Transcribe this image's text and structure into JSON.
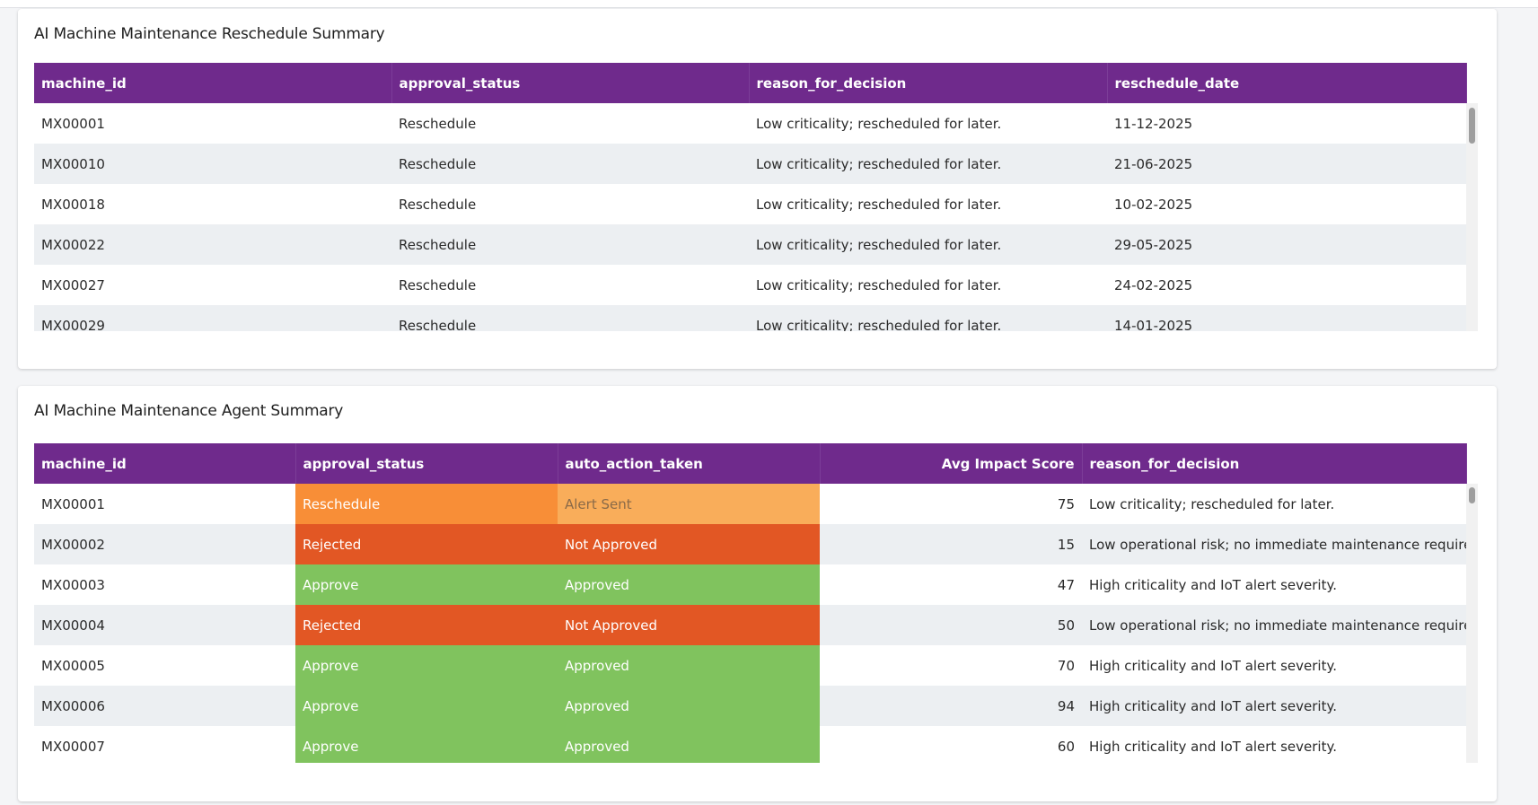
{
  "reschedule_summary": {
    "title": "AI Machine Maintenance Reschedule Summary",
    "columns": [
      "machine_id",
      "approval_status",
      "reason_for_decision",
      "reschedule_date"
    ],
    "rows": [
      [
        "MX00001",
        "Reschedule",
        "Low criticality; rescheduled for later.",
        "11-12-2025"
      ],
      [
        "MX00010",
        "Reschedule",
        "Low criticality; rescheduled for later.",
        "21-06-2025"
      ],
      [
        "MX00018",
        "Reschedule",
        "Low criticality; rescheduled for later.",
        "10-02-2025"
      ],
      [
        "MX00022",
        "Reschedule",
        "Low criticality; rescheduled for later.",
        "29-05-2025"
      ],
      [
        "MX00027",
        "Reschedule",
        "Low criticality; rescheduled for later.",
        "24-02-2025"
      ],
      [
        "MX00029",
        "Reschedule",
        "Low criticality; rescheduled for later.",
        "14-01-2025"
      ]
    ]
  },
  "agent_summary": {
    "title": "AI Machine Maintenance Agent Summary",
    "columns": [
      "machine_id",
      "approval_status",
      "auto_action_taken",
      "Avg Impact Score",
      "reason_for_decision"
    ],
    "rows": [
      {
        "machine_id": "MX00001",
        "approval_status": "Reschedule",
        "auto_action_taken": "Alert Sent",
        "avg_impact_score": "75",
        "reason_for_decision": "Low criticality; rescheduled for later."
      },
      {
        "machine_id": "MX00002",
        "approval_status": "Rejected",
        "auto_action_taken": "Not Approved",
        "avg_impact_score": "15",
        "reason_for_decision": "Low operational risk; no immediate maintenance required."
      },
      {
        "machine_id": "MX00003",
        "approval_status": "Approve",
        "auto_action_taken": "Approved",
        "avg_impact_score": "47",
        "reason_for_decision": "High criticality and IoT alert severity."
      },
      {
        "machine_id": "MX00004",
        "approval_status": "Rejected",
        "auto_action_taken": "Not Approved",
        "avg_impact_score": "50",
        "reason_for_decision": "Low operational risk; no immediate maintenance required."
      },
      {
        "machine_id": "MX00005",
        "approval_status": "Approve",
        "auto_action_taken": "Approved",
        "avg_impact_score": "70",
        "reason_for_decision": "High criticality and IoT alert severity."
      },
      {
        "machine_id": "MX00006",
        "approval_status": "Approve",
        "auto_action_taken": "Approved",
        "avg_impact_score": "94",
        "reason_for_decision": "High criticality and IoT alert severity."
      },
      {
        "machine_id": "MX00007",
        "approval_status": "Approve",
        "auto_action_taken": "Approved",
        "avg_impact_score": "60",
        "reason_for_decision": "High criticality and IoT alert severity."
      }
    ],
    "status_colors": {
      "Reschedule": "#f88e37",
      "Rejected": "#e25724",
      "Approve": "#80c35e"
    },
    "action_colors": {
      "Alert Sent": "#f9ad5a",
      "Not Approved": "#e25724",
      "Approved": "#80c35e"
    }
  },
  "theme": {
    "header_color": "#6f2a8c"
  }
}
